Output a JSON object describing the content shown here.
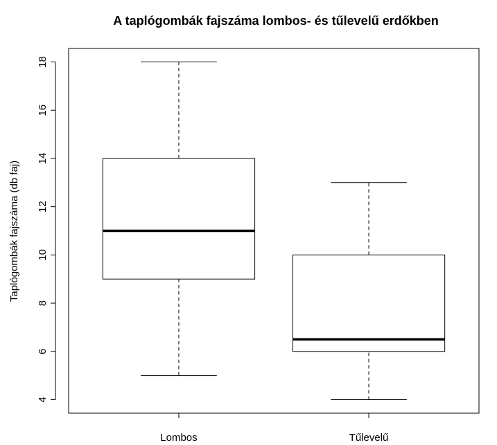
{
  "chart_data": {
    "type": "boxplot",
    "title": "A taplógombák fajszáma lombos- és tűlevelű erdőkben",
    "y_label": "Taplógombák fajszáma (db faj)",
    "categories": [
      "Lombos",
      "Tűlevelű"
    ],
    "boxes": [
      {
        "min": 5,
        "q1": 9,
        "median": 11,
        "q3": 14,
        "max": 18
      },
      {
        "min": 4,
        "q1": 6,
        "median": 6.5,
        "q3": 10,
        "max": 13
      }
    ],
    "color": "#000000",
    "ylim": [
      3.44,
      18.56
    ],
    "yticks": [
      4,
      6,
      8,
      10,
      12,
      14,
      16,
      18
    ]
  }
}
